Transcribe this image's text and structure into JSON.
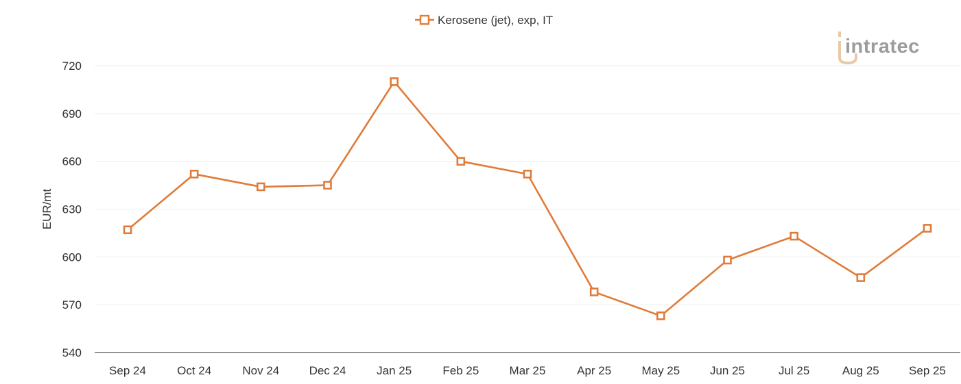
{
  "chart_data": {
    "type": "line",
    "title": "",
    "xlabel": "",
    "ylabel": "EUR/mt",
    "categories": [
      "Sep 24",
      "Oct 24",
      "Nov 24",
      "Dec 24",
      "Jan 25",
      "Feb 25",
      "Mar 25",
      "Apr 25",
      "May 25",
      "Jun 25",
      "Jul 25",
      "Aug 25",
      "Sep 25"
    ],
    "series": [
      {
        "name": "Kerosene (jet), exp, IT",
        "color": "#e07b39",
        "marker": "square-open",
        "values": [
          617,
          652,
          644,
          645,
          710,
          660,
          652,
          578,
          563,
          598,
          613,
          587,
          618
        ]
      }
    ],
    "ylim": [
      540,
      720
    ],
    "yticks": [
      540,
      570,
      600,
      630,
      660,
      690,
      720
    ],
    "grid": "horizontal",
    "legend": "top-center"
  },
  "logo": {
    "text": "intratec",
    "colors": {
      "text": "#9c9c9c",
      "accent": "#e8c9a8"
    }
  }
}
